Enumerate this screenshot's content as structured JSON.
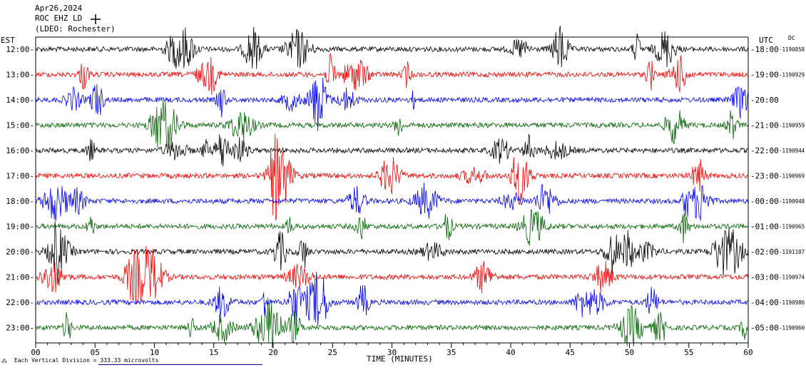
{
  "header": {
    "date": "Apr26,2024",
    "station": "ROC EHZ LD",
    "network": "(LDEO: Rochester)"
  },
  "labels": {
    "left_zone": "EST",
    "right_zone": "UTC",
    "dc_label": "DC",
    "footer_note": "Each Vertical Division = 333.33 microvolts"
  },
  "colors": {
    "trace_cycle": [
      "#000000",
      "#ff0000",
      "#0000ff",
      "#006400"
    ],
    "background": "#ffffff",
    "axis": "#000000"
  },
  "chart_data": {
    "type": "line",
    "title": "Apr26,2024",
    "xlabel": "TIME (MINUTES)",
    "xlim": [
      0,
      60
    ],
    "x_ticks": [
      "00",
      "05",
      "10",
      "15",
      "20",
      "25",
      "30",
      "35",
      "40",
      "45",
      "50",
      "55",
      "60"
    ],
    "rows": [
      {
        "est": "12:00",
        "utc": "18:00",
        "dc": "-1190858",
        "color": "#000000"
      },
      {
        "est": "13:00",
        "utc": "19:00",
        "dc": "-1190929",
        "color": "#ff0000"
      },
      {
        "est": "14:00",
        "utc": "20:00",
        "dc": "",
        "color": "#0000ff"
      },
      {
        "est": "15:00",
        "utc": "21:00",
        "dc": "-1190959",
        "color": "#006400"
      },
      {
        "est": "16:00",
        "utc": "22:00",
        "dc": "-1190944",
        "color": "#000000"
      },
      {
        "est": "17:00",
        "utc": "23:00",
        "dc": "-1190969",
        "color": "#ff0000"
      },
      {
        "est": "18:00",
        "utc": "00:00",
        "dc": "-1190948",
        "color": "#0000ff"
      },
      {
        "est": "19:00",
        "utc": "01:00",
        "dc": "-1190965",
        "color": "#006400"
      },
      {
        "est": "20:00",
        "utc": "02:00",
        "dc": "-1191107",
        "color": "#000000"
      },
      {
        "est": "21:00",
        "utc": "03:00",
        "dc": "-1190974",
        "color": "#ff0000"
      },
      {
        "est": "22:00",
        "utc": "04:00",
        "dc": "-1190986",
        "color": "#0000ff"
      },
      {
        "est": "23:00",
        "utc": "05:00",
        "dc": "-1190960",
        "color": "#006400"
      }
    ]
  }
}
